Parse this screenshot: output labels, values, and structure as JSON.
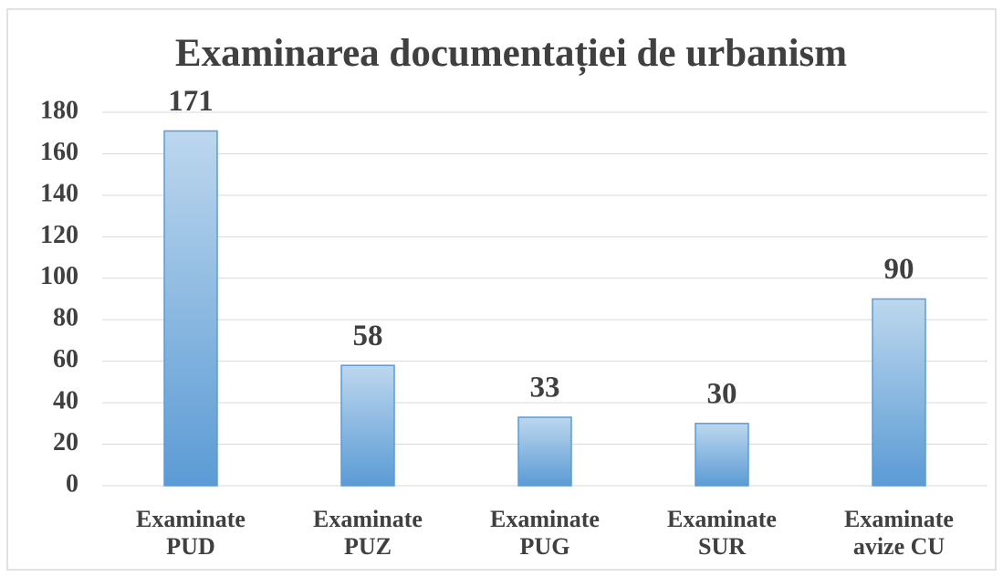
{
  "chart_data": {
    "type": "bar",
    "title": "Examinarea documentației de urbanism",
    "categories": [
      "Examinate PUD",
      "Examinate PUZ",
      "Examinate PUG",
      "Examinate SUR",
      "Examinate avize CU"
    ],
    "values": [
      171,
      58,
      33,
      30,
      90
    ],
    "color": "#5b9bd5",
    "ylim": [
      0,
      180
    ],
    "yticks": [
      0,
      20,
      40,
      60,
      80,
      100,
      120,
      140,
      160,
      180
    ],
    "grid": true
  }
}
